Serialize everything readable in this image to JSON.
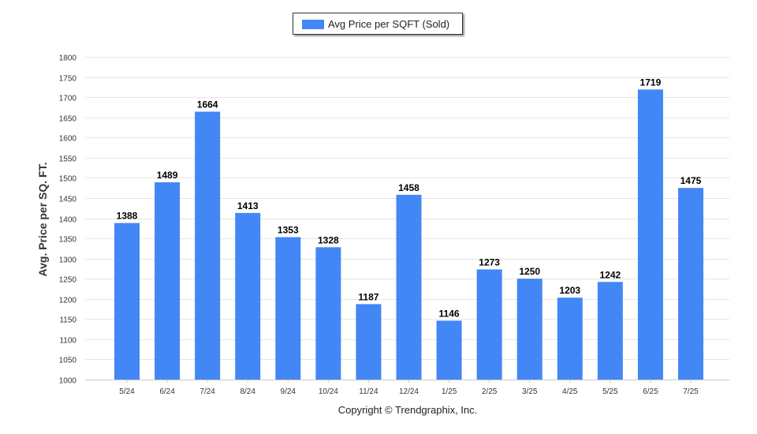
{
  "chart_data": {
    "type": "bar",
    "categories": [
      "5/24",
      "6/24",
      "7/24",
      "8/24",
      "9/24",
      "10/24",
      "11/24",
      "12/24",
      "1/25",
      "2/25",
      "3/25",
      "4/25",
      "5/25",
      "6/25",
      "7/25"
    ],
    "series": [
      {
        "name": "Avg Price per SQFT (Sold)",
        "values": [
          1388,
          1489,
          1664,
          1413,
          1353,
          1328,
          1187,
          1458,
          1146,
          1273,
          1250,
          1203,
          1242,
          1719,
          1475
        ]
      }
    ],
    "ylabel": "Avg. Price per SQ. FT.",
    "ylim": [
      1000,
      1800
    ],
    "yticks": [
      1000,
      1050,
      1100,
      1150,
      1200,
      1250,
      1300,
      1350,
      1400,
      1450,
      1500,
      1550,
      1600,
      1650,
      1700,
      1750,
      1800
    ],
    "grid": true,
    "legend_position": "top-center",
    "bar_color": "#4287f5"
  },
  "footer": {
    "copyright": "Copyright © Trendgraphix, Inc."
  }
}
